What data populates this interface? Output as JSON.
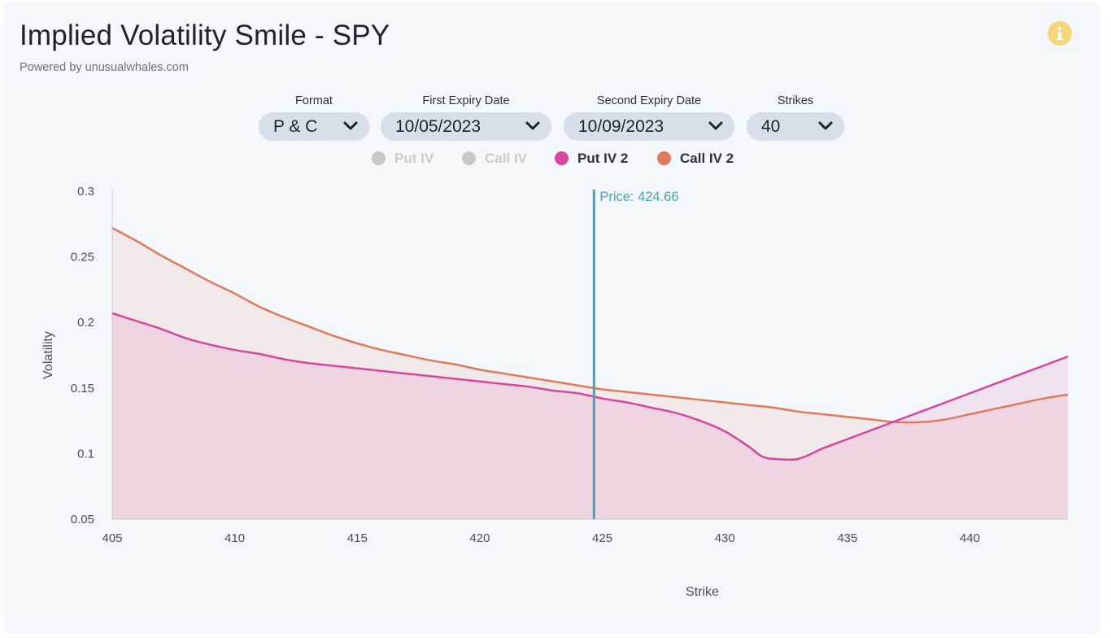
{
  "header": {
    "title": "Implied Volatility Smile - SPY",
    "subtitle": "Powered by unusualwhales.com",
    "info_icon": "info-icon"
  },
  "controls": {
    "format": {
      "label": "Format",
      "value": "P & C"
    },
    "first_expiry": {
      "label": "First Expiry Date",
      "value": "10/05/2023"
    },
    "second_expiry": {
      "label": "Second Expiry Date",
      "value": "10/09/2023"
    },
    "strikes": {
      "label": "Strikes",
      "value": "40"
    }
  },
  "legend": [
    {
      "label": "Put IV",
      "active": false,
      "color": "#c8c8c8"
    },
    {
      "label": "Call IV",
      "active": false,
      "color": "#c8c8c8"
    },
    {
      "label": "Put IV 2",
      "active": true,
      "color": "#d6479f"
    },
    {
      "label": "Call IV 2",
      "active": true,
      "color": "#e07a5a"
    }
  ],
  "colors": {
    "put_iv2": "#d6479f",
    "call_iv2": "#e07a5a",
    "price_line": "#4aa3b5",
    "axis": "#c9d3e0"
  },
  "chart_data": {
    "type": "area",
    "xlabel": "Strike",
    "ylabel": "Volatility",
    "xlim": [
      405,
      444
    ],
    "ylim": [
      0.05,
      0.3
    ],
    "x_ticks": [
      405,
      410,
      415,
      420,
      425,
      430,
      435,
      440
    ],
    "y_ticks": [
      0.05,
      0.1,
      0.15,
      0.2,
      0.25,
      0.3
    ],
    "price_marker": {
      "label": "Price: 424.66",
      "value": 424.66
    },
    "series": [
      {
        "name": "Put IV 2",
        "x": [
          405,
          406,
          407,
          408,
          409,
          410,
          411,
          412,
          413,
          414,
          415,
          416,
          417,
          418,
          419,
          420,
          421,
          422,
          423,
          424,
          425,
          426,
          427,
          428,
          429,
          430,
          431,
          431.5,
          432,
          433,
          434,
          435,
          436,
          437,
          438,
          439,
          440,
          441,
          442,
          443,
          444
        ],
        "values": [
          0.207,
          0.201,
          0.195,
          0.188,
          0.183,
          0.179,
          0.176,
          0.172,
          0.169,
          0.167,
          0.165,
          0.163,
          0.161,
          0.159,
          0.157,
          0.155,
          0.153,
          0.151,
          0.148,
          0.146,
          0.142,
          0.139,
          0.135,
          0.131,
          0.125,
          0.117,
          0.105,
          0.098,
          0.096,
          0.096,
          0.104,
          0.111,
          0.118,
          0.125,
          0.132,
          0.139,
          0.146,
          0.153,
          0.16,
          0.167,
          0.174
        ]
      },
      {
        "name": "Call IV 2",
        "x": [
          405,
          406,
          407,
          408,
          409,
          410,
          411,
          412,
          413,
          414,
          415,
          416,
          417,
          418,
          419,
          420,
          421,
          422,
          423,
          424,
          425,
          426,
          427,
          428,
          429,
          430,
          431,
          432,
          433,
          434,
          435,
          436,
          437,
          438,
          439,
          440,
          441,
          442,
          443,
          444
        ],
        "values": [
          0.272,
          0.262,
          0.251,
          0.241,
          0.231,
          0.222,
          0.212,
          0.204,
          0.197,
          0.19,
          0.184,
          0.179,
          0.175,
          0.171,
          0.168,
          0.164,
          0.161,
          0.158,
          0.155,
          0.152,
          0.149,
          0.147,
          0.145,
          0.143,
          0.141,
          0.139,
          0.137,
          0.135,
          0.132,
          0.13,
          0.128,
          0.126,
          0.124,
          0.124,
          0.126,
          0.13,
          0.134,
          0.138,
          0.142,
          0.145
        ]
      }
    ]
  }
}
